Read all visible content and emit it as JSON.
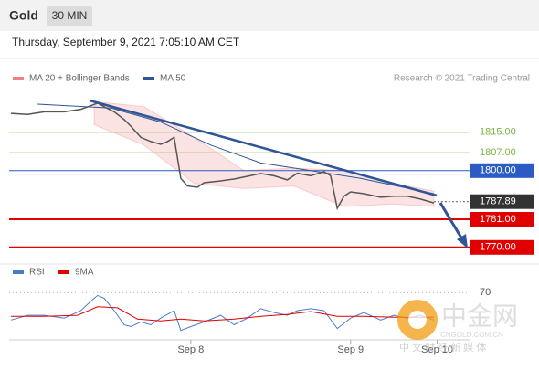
{
  "header": {
    "symbol": "Gold",
    "interval": "30 MIN",
    "datetime": "Thursday, September 9, 2021 7:05:10 AM CET",
    "credit": "Research © 2021 Trading Central"
  },
  "watermark": {
    "logo": "中金网",
    "domain": "CNGOLD.COM.CN",
    "tagline": "中 文 财 经 新 媒 体"
  },
  "chart_data": [
    {
      "type": "line",
      "xlim": [
        0,
        138
      ],
      "ylim": [
        1766,
        1831
      ],
      "xticks": [
        {
          "value": 54,
          "label": "Sep 8"
        },
        {
          "value": 102,
          "label": "Sep 9"
        },
        {
          "value": 128,
          "label": "Sep 10"
        }
      ],
      "color": "#555555",
      "x": [
        0,
        5,
        10,
        16,
        21,
        26,
        28,
        31,
        34,
        36,
        39,
        42,
        45,
        47,
        49,
        51,
        53,
        56,
        58,
        63,
        67,
        71,
        75,
        79,
        83,
        86,
        90,
        94,
        96,
        98,
        100,
        102,
        106,
        111,
        115,
        119,
        123,
        127
      ],
      "values": [
        1822.4,
        1822,
        1823,
        1823,
        1824,
        1826.4,
        1825,
        1823,
        1820,
        1817.4,
        1813,
        1811.4,
        1810.3,
        1811.4,
        1813,
        1797,
        1794,
        1793.5,
        1795.3,
        1796,
        1796.7,
        1797.8,
        1798.9,
        1798,
        1796.4,
        1799,
        1798,
        1799.6,
        1798,
        1785.3,
        1790,
        1791.7,
        1791,
        1789.6,
        1790,
        1790,
        1788.9,
        1787.4
      ],
      "series": [
        {
          "name": "MA 20 + Bollinger Bands",
          "color": "#f08080",
          "x": [
            25,
            40,
            55,
            70,
            85,
            100,
            115,
            127
          ],
          "upper": [
            1827,
            1825,
            1813,
            1800,
            1801,
            1800,
            1795,
            1792
          ],
          "lower": [
            1818,
            1810,
            1795,
            1793,
            1794,
            1786,
            1787,
            1786
          ]
        },
        {
          "name": "MA 50",
          "color": "#2f5597",
          "x": [
            8,
            30,
            45,
            60,
            75,
            90,
            105,
            127
          ],
          "values": [
            1826,
            1824.5,
            1819,
            1810,
            1803,
            1800,
            1797,
            1791
          ]
        }
      ],
      "levels": [
        {
          "value": 1815,
          "label": "1815.00",
          "color": "#7cb342",
          "style": "text"
        },
        {
          "value": 1807,
          "label": "1807.00",
          "color": "#7cb342",
          "style": "text"
        },
        {
          "value": 1800,
          "label": "1800.00",
          "color": "#2a5cc4",
          "style": "box"
        },
        {
          "value": 1781,
          "label": "1781.00",
          "color": "#e00000",
          "style": "box"
        },
        {
          "value": 1770,
          "label": "1770.00",
          "color": "#e00000",
          "style": "box"
        }
      ],
      "last": {
        "value": 1787.89,
        "label": "1787.89",
        "color": "#333333"
      }
    },
    {
      "type": "line",
      "ylim": [
        20,
        80
      ],
      "yticks": [
        70
      ],
      "series": [
        {
          "name": "RSI",
          "color": "#4a7bd0",
          "x": [
            0,
            5,
            10,
            16,
            21,
            24,
            26,
            28,
            31,
            34,
            36,
            39,
            42,
            45,
            49,
            51,
            54,
            58,
            63,
            67,
            71,
            75,
            79,
            83,
            86,
            90,
            94,
            98,
            102,
            106,
            111,
            115,
            119,
            123,
            127
          ],
          "values": [
            41,
            46,
            46,
            43,
            51,
            61,
            67,
            64,
            51,
            36,
            34,
            39,
            36,
            43,
            51,
            30,
            34,
            39,
            46,
            36,
            43,
            53,
            49,
            46,
            51,
            53,
            51,
            32,
            43,
            49,
            41,
            46,
            43,
            46,
            41
          ]
        },
        {
          "name": "9MA",
          "color": "#e00000",
          "x": [
            0,
            10,
            20,
            26,
            32,
            38,
            45,
            51,
            58,
            67,
            75,
            83,
            90,
            98,
            106,
            115,
            127
          ],
          "values": [
            45,
            45,
            46,
            55,
            54,
            42,
            40,
            42,
            40,
            42,
            45,
            47,
            50,
            45,
            45,
            44,
            44
          ]
        }
      ]
    }
  ]
}
